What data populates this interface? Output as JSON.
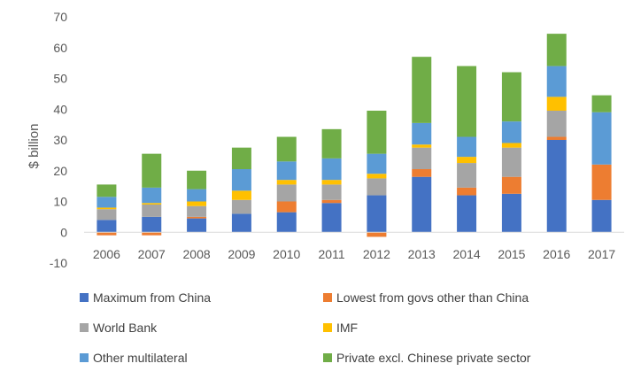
{
  "chart_data": {
    "type": "bar",
    "stacked": true,
    "title": "",
    "xlabel": "",
    "ylabel": "$ billion",
    "ylim": [
      -10,
      70
    ],
    "yticks": [
      -10,
      0,
      10,
      20,
      30,
      40,
      50,
      60,
      70
    ],
    "grid": false,
    "legend_position": "bottom",
    "categories": [
      "2006",
      "2007",
      "2008",
      "2009",
      "2010",
      "2011",
      "2012",
      "2013",
      "2014",
      "2015",
      "2016",
      "2017"
    ],
    "series": [
      {
        "name": "Maximum from China",
        "color": "#4472C4",
        "values": [
          4.0,
          5.0,
          4.5,
          6.0,
          6.5,
          9.5,
          12.0,
          18.0,
          12.0,
          12.5,
          30.0,
          10.5
        ]
      },
      {
        "name": "Lowest from govs other than China",
        "color": "#ED7D31",
        "values": [
          -1.0,
          -1.0,
          0.5,
          0.0,
          3.5,
          1.0,
          -1.5,
          2.5,
          2.5,
          5.5,
          1.0,
          11.5
        ]
      },
      {
        "name": "World Bank",
        "color": "#A5A5A5",
        "values": [
          3.5,
          4.0,
          3.5,
          4.5,
          5.5,
          5.0,
          5.5,
          7.0,
          8.0,
          9.5,
          8.5,
          0.0
        ]
      },
      {
        "name": "IMF",
        "color": "#FFC000",
        "values": [
          0.5,
          0.5,
          1.5,
          3.0,
          1.5,
          1.5,
          1.5,
          1.0,
          2.0,
          1.5,
          4.5,
          0.0
        ]
      },
      {
        "name": "Other multilateral",
        "color": "#5B9BD5",
        "values": [
          3.5,
          5.0,
          4.0,
          7.0,
          6.0,
          7.0,
          6.5,
          7.0,
          6.5,
          7.0,
          10.0,
          17.0
        ]
      },
      {
        "name": "Private excl. Chinese private sector",
        "color": "#70AD47",
        "values": [
          4.0,
          11.0,
          6.0,
          7.0,
          8.0,
          9.5,
          14.0,
          21.5,
          23.0,
          16.0,
          10.5,
          5.5
        ]
      }
    ]
  }
}
